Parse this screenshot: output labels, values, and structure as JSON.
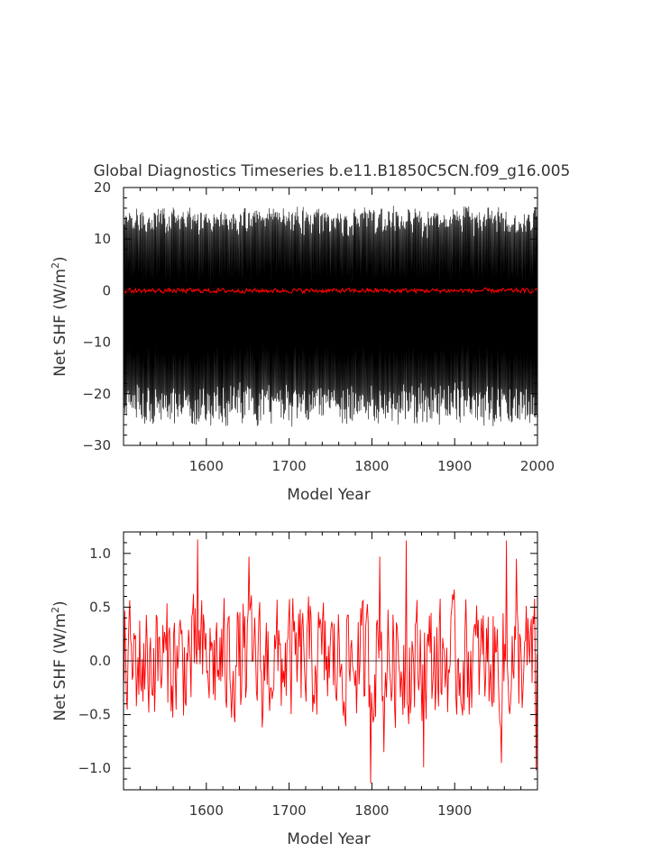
{
  "chart_data": [
    {
      "type": "line",
      "title": "Global Diagnostics Timeseries b.e11.B1850C5CN.f09_g16.005",
      "xlabel": "Model Year",
      "ylabel": "Net SHF (W/m",
      "ylabel_sup": "2",
      "ylabel_close": ")",
      "xlim": [
        1500,
        2000
      ],
      "ylim": [
        -30,
        20
      ],
      "x_ticks": [
        1600,
        1700,
        1800,
        1900,
        2000
      ],
      "y_ticks": [
        -30,
        -20,
        -10,
        0,
        10,
        20
      ],
      "x_tick_labels": [
        "1600",
        "1700",
        "1800",
        "1900",
        "2000"
      ],
      "y_tick_labels": [
        "−30",
        "−20",
        "−10",
        "0",
        "10",
        "20"
      ],
      "grid": false,
      "series": [
        {
          "role": "monthly",
          "color": "#000000",
          "annual_cycle": {
            "max_range": [
              11,
              16
            ],
            "min_range": [
              -26,
              -19
            ]
          },
          "x_range": [
            1500,
            2000
          ]
        },
        {
          "role": "annual_mean",
          "color": "#ff0000",
          "x_range": [
            1500,
            2000
          ],
          "value_range": [
            -0.9,
            1.1
          ]
        }
      ]
    },
    {
      "type": "line",
      "title": "",
      "xlabel": "Model Year",
      "ylabel": "Net SHF (W/m",
      "ylabel_sup": "2",
      "ylabel_close": ")",
      "xlim": [
        1500,
        2000
      ],
      "ylim": [
        -1.2,
        1.2
      ],
      "x_ticks": [
        1600,
        1700,
        1800,
        1900
      ],
      "y_ticks": [
        -1.0,
        -0.5,
        0.0,
        0.5,
        1.0
      ],
      "x_tick_labels": [
        "1600",
        "1700",
        "1800",
        "1900"
      ],
      "y_tick_labels": [
        "−1.0",
        "−0.5",
        "0.0",
        "0.5",
        "1.0"
      ],
      "zero_line": true,
      "grid": false,
      "series": [
        {
          "role": "annual_mean",
          "color": "#ff0000",
          "x_range": [
            1500,
            1999
          ],
          "peaks": [
            {
              "x": 1589,
              "y": 1.13
            },
            {
              "x": 1651,
              "y": 0.97
            },
            {
              "x": 1809,
              "y": 0.97
            },
            {
              "x": 1841,
              "y": 1.12
            },
            {
              "x": 1962,
              "y": 1.12
            },
            {
              "x": 1974,
              "y": 0.95
            }
          ],
          "troughs": [
            {
              "x": 1798,
              "y": -1.14
            },
            {
              "x": 1862,
              "y": -0.99
            },
            {
              "x": 1956,
              "y": -0.95
            },
            {
              "x": 1998,
              "y": -1.02
            },
            {
              "x": 1814,
              "y": -0.85
            },
            {
              "x": 1667,
              "y": -0.62
            }
          ]
        }
      ]
    }
  ]
}
